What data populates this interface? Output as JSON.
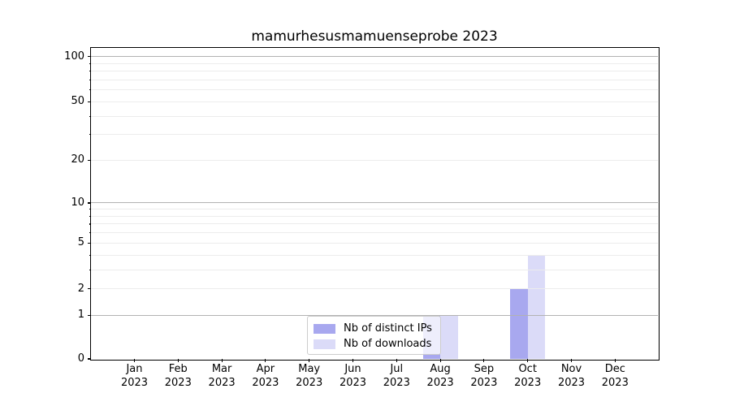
{
  "title": "mamurhesusmamuenseprobe 2023",
  "chart_data": {
    "type": "bar",
    "title": "mamurhesusmamuenseprobe 2023",
    "x_tick_months": [
      "Jan",
      "Feb",
      "Mar",
      "Apr",
      "May",
      "Jun",
      "Jul",
      "Aug",
      "Sep",
      "Oct",
      "Nov",
      "Dec"
    ],
    "x_tick_year": "2023",
    "series": [
      {
        "name": "Nb of distinct IPs",
        "color": "#a8a8ef",
        "values": [
          0,
          0,
          0,
          0,
          0,
          0,
          0,
          1,
          0,
          2,
          0,
          0
        ]
      },
      {
        "name": "Nb of downloads",
        "color": "#dbdbf8",
        "values": [
          0,
          0,
          0,
          0,
          0,
          0,
          0,
          1,
          0,
          4,
          0,
          0
        ]
      }
    ],
    "yscale": "log1p",
    "ylim": [
      0,
      115
    ],
    "yticks": [
      0,
      1,
      2,
      5,
      10,
      20,
      50,
      100
    ],
    "major_gridlines": [
      1,
      10,
      100
    ],
    "minor_gridlines": [
      3,
      4,
      6,
      7,
      8,
      9,
      30,
      40,
      60,
      70,
      80,
      90
    ],
    "grid": true,
    "legend_position": "lower center"
  },
  "colors": {
    "grid_major": "#b2b2b2",
    "grid_minor": "#ececec",
    "spine": "#000000",
    "background": "#ffffff"
  }
}
